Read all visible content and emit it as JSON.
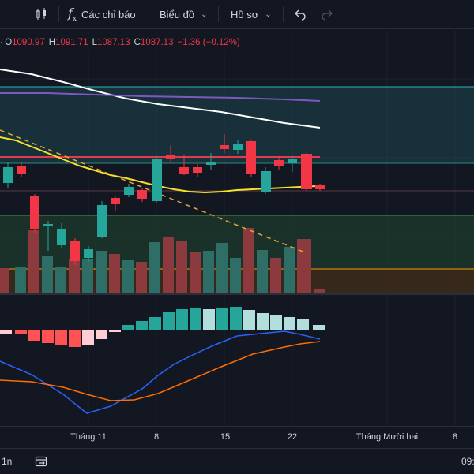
{
  "toolbar": {
    "indicators_label": "Các chỉ báo",
    "chart_label": "Biểu đồ",
    "profile_label": "Hồ sơ"
  },
  "ohlc": {
    "o_label": "O",
    "o_value": "1090.97",
    "h_label": "H",
    "h_value": "1091.71",
    "l_label": "L",
    "l_value": "1087.13",
    "c_label": "C",
    "c_value": "1087.13",
    "change": "−1.36 (−0.12%)"
  },
  "xaxis": {
    "labels": [
      "Tháng 11",
      "8",
      "15",
      "22",
      "Tháng Mười hai",
      "8"
    ]
  },
  "bottom": {
    "interval": "1n",
    "time": "09:"
  },
  "colors": {
    "up": "#26a69a",
    "down": "#f23645",
    "background": "#131722",
    "ma_fast": "#f5e12a",
    "ma_slow": "#ffffff",
    "ma_long": "#7e57c2",
    "band_red": "#e53950",
    "macd_line": "#2962ff",
    "signal_line": "#ff6d00"
  },
  "chart_data": {
    "type": "candlestick",
    "ohlc_last": {
      "open": 1090.97,
      "high": 1091.71,
      "low": 1087.13,
      "close": 1087.13,
      "change": -1.36,
      "change_pct": -0.12
    },
    "x_ticks": [
      "Tháng 11",
      "8",
      "15",
      "22",
      "Tháng Mười hai",
      "8"
    ]
  }
}
